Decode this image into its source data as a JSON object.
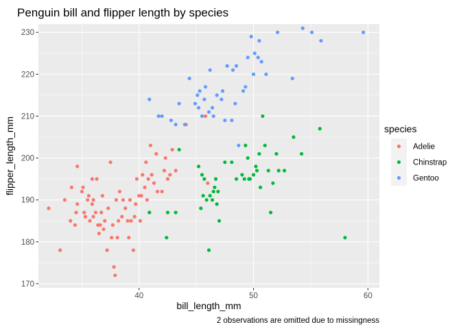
{
  "chart_data": {
    "type": "scatter",
    "title": "Penguin bill and flipper length by species",
    "xlabel": "bill_length_mm",
    "ylabel": "flipper_length_mm",
    "caption": "2 observations are omitted due to missingness",
    "xlim": [
      31.2,
      61.0
    ],
    "ylim": [
      169,
      232
    ],
    "x_ticks": [
      40,
      50,
      60
    ],
    "y_ticks": [
      170,
      180,
      190,
      200,
      210,
      220,
      230
    ],
    "grid": true,
    "legend": {
      "title": "species",
      "position": "right"
    },
    "series": [
      {
        "name": "Adelie",
        "color": "#F8766D",
        "points": [
          [
            32.1,
            188
          ],
          [
            33.1,
            178
          ],
          [
            33.5,
            190
          ],
          [
            34.0,
            185
          ],
          [
            34.1,
            193
          ],
          [
            34.4,
            184
          ],
          [
            34.5,
            187
          ],
          [
            34.6,
            189
          ],
          [
            34.6,
            198
          ],
          [
            35.0,
            192
          ],
          [
            35.1,
            193
          ],
          [
            35.2,
            187
          ],
          [
            35.3,
            186
          ],
          [
            35.5,
            190
          ],
          [
            35.6,
            191
          ],
          [
            35.7,
            185
          ],
          [
            35.9,
            189
          ],
          [
            35.9,
            195
          ],
          [
            36.0,
            186
          ],
          [
            36.0,
            190
          ],
          [
            36.2,
            187
          ],
          [
            36.3,
            195
          ],
          [
            36.4,
            184
          ],
          [
            36.5,
            182
          ],
          [
            36.6,
            184
          ],
          [
            36.7,
            187
          ],
          [
            36.8,
            191
          ],
          [
            36.9,
            183
          ],
          [
            37.0,
            185
          ],
          [
            37.2,
            178
          ],
          [
            37.3,
            188
          ],
          [
            37.5,
            199
          ],
          [
            37.6,
            181
          ],
          [
            37.7,
            184
          ],
          [
            37.8,
            174
          ],
          [
            37.9,
            172
          ],
          [
            38.0,
            190
          ],
          [
            38.1,
            181
          ],
          [
            38.2,
            185
          ],
          [
            38.3,
            192
          ],
          [
            38.5,
            186
          ],
          [
            38.6,
            190
          ],
          [
            38.8,
            188
          ],
          [
            39.0,
            185
          ],
          [
            39.1,
            181
          ],
          [
            39.2,
            190
          ],
          [
            39.3,
            185
          ],
          [
            39.5,
            178
          ],
          [
            39.6,
            186
          ],
          [
            39.7,
            189
          ],
          [
            39.8,
            195
          ],
          [
            40.0,
            191
          ],
          [
            40.1,
            185
          ],
          [
            40.2,
            191
          ],
          [
            40.3,
            196
          ],
          [
            40.5,
            193
          ],
          [
            40.6,
            199
          ],
          [
            40.7,
            190
          ],
          [
            40.8,
            195
          ],
          [
            40.9,
            187
          ],
          [
            41.0,
            203
          ],
          [
            41.1,
            196
          ],
          [
            41.3,
            194
          ],
          [
            41.5,
            201
          ],
          [
            41.6,
            192
          ],
          [
            42.0,
            192
          ],
          [
            42.2,
            197
          ],
          [
            42.3,
            200
          ],
          [
            42.5,
            195
          ],
          [
            42.7,
            196
          ],
          [
            42.9,
            202
          ],
          [
            43.2,
            197
          ],
          [
            44.1,
            208
          ],
          [
            45.8,
            210
          ],
          [
            46.0,
            194
          ]
        ]
      },
      {
        "name": "Chinstrap",
        "color": "#00BA38",
        "points": [
          [
            40.9,
            187
          ],
          [
            42.4,
            181
          ],
          [
            42.5,
            187
          ],
          [
            43.2,
            187
          ],
          [
            43.5,
            202
          ],
          [
            45.2,
            198
          ],
          [
            45.4,
            188
          ],
          [
            45.5,
            196
          ],
          [
            45.6,
            191
          ],
          [
            45.7,
            195
          ],
          [
            45.9,
            190
          ],
          [
            46.1,
            178
          ],
          [
            46.2,
            191
          ],
          [
            46.4,
            190
          ],
          [
            46.5,
            192
          ],
          [
            46.6,
            193
          ],
          [
            46.7,
            195
          ],
          [
            46.8,
            189
          ],
          [
            46.9,
            192
          ],
          [
            47.0,
            185
          ],
          [
            47.5,
            199
          ],
          [
            48.1,
            199
          ],
          [
            48.5,
            195
          ],
          [
            49.0,
            196
          ],
          [
            49.2,
            195
          ],
          [
            49.3,
            203
          ],
          [
            49.5,
            200
          ],
          [
            49.6,
            195
          ],
          [
            49.7,
            195
          ],
          [
            50.0,
            196
          ],
          [
            50.2,
            198
          ],
          [
            50.3,
            197
          ],
          [
            50.5,
            201
          ],
          [
            50.6,
            193
          ],
          [
            50.8,
            210
          ],
          [
            51.0,
            203
          ],
          [
            51.3,
            197
          ],
          [
            51.5,
            187
          ],
          [
            51.7,
            194
          ],
          [
            52.0,
            201
          ],
          [
            52.2,
            197
          ],
          [
            52.7,
            197
          ],
          [
            53.5,
            205
          ],
          [
            54.2,
            201
          ],
          [
            55.8,
            207
          ],
          [
            58.0,
            181
          ]
        ]
      },
      {
        "name": "Gentoo",
        "color": "#619CFF",
        "points": [
          [
            40.9,
            214
          ],
          [
            41.7,
            210
          ],
          [
            42.0,
            210
          ],
          [
            42.8,
            209
          ],
          [
            43.2,
            208
          ],
          [
            43.5,
            213
          ],
          [
            44.0,
            208
          ],
          [
            44.4,
            219
          ],
          [
            44.9,
            213
          ],
          [
            45.1,
            215
          ],
          [
            45.2,
            212
          ],
          [
            45.3,
            216
          ],
          [
            45.5,
            210
          ],
          [
            45.7,
            214
          ],
          [
            45.8,
            217
          ],
          [
            46.1,
            211
          ],
          [
            46.2,
            221
          ],
          [
            46.4,
            212
          ],
          [
            46.5,
            210
          ],
          [
            46.8,
            215
          ],
          [
            47.2,
            214
          ],
          [
            47.3,
            216
          ],
          [
            47.5,
            209
          ],
          [
            47.7,
            222
          ],
          [
            48.1,
            209
          ],
          [
            48.2,
            221
          ],
          [
            48.4,
            213
          ],
          [
            48.5,
            222
          ],
          [
            48.7,
            203
          ],
          [
            49.1,
            216
          ],
          [
            49.3,
            217
          ],
          [
            49.5,
            224
          ],
          [
            49.8,
            229
          ],
          [
            50.0,
            220
          ],
          [
            50.1,
            225
          ],
          [
            50.4,
            224
          ],
          [
            50.5,
            228
          ],
          [
            50.7,
            223
          ],
          [
            51.1,
            220
          ],
          [
            52.1,
            230
          ],
          [
            53.4,
            219
          ],
          [
            54.3,
            231
          ],
          [
            55.1,
            230
          ],
          [
            55.9,
            228
          ],
          [
            59.6,
            230
          ]
        ]
      }
    ]
  }
}
